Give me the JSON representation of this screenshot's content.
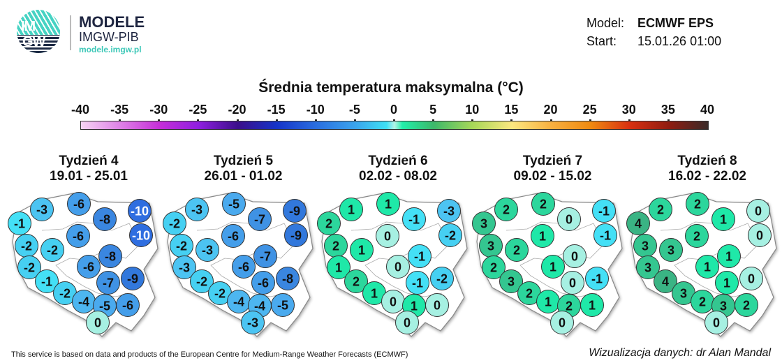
{
  "header": {
    "logo_text": "IMGW",
    "brand_title": "MODELE",
    "brand_subtitle": "IMGW-PIB",
    "brand_url": "modele.imgw.pl",
    "model_label": "Model:",
    "model_value": "ECMWF EPS",
    "start_label": "Start:",
    "start_value": "15.01.26 01:00"
  },
  "colorbar": {
    "title": "Średnia temperatura maksymalna (°C)",
    "ticks": [
      "-40",
      "-35",
      "-30",
      "-25",
      "-20",
      "-15",
      "-10",
      "-5",
      "0",
      "5",
      "10",
      "15",
      "20",
      "25",
      "30",
      "35",
      "40"
    ],
    "range": [
      -40,
      40
    ],
    "stops": [
      {
        "v": -40,
        "c": "#f6d4f4"
      },
      {
        "v": -30,
        "c": "#c62fd8"
      },
      {
        "v": -25,
        "c": "#8f1fe0"
      },
      {
        "v": -20,
        "c": "#3b0e8a"
      },
      {
        "v": -15,
        "c": "#1534c8"
      },
      {
        "v": -10,
        "c": "#2a6ee0"
      },
      {
        "v": -5,
        "c": "#3aa4ec"
      },
      {
        "v": -1,
        "c": "#3ee0f4"
      },
      {
        "v": 0,
        "c": "#b4f4e8"
      },
      {
        "v": 1,
        "c": "#22eeaa"
      },
      {
        "v": 5,
        "c": "#3cb86a"
      },
      {
        "v": 10,
        "c": "#a8d858"
      },
      {
        "v": 15,
        "c": "#fce880"
      },
      {
        "v": 20,
        "c": "#f8b040"
      },
      {
        "v": 25,
        "c": "#f08a10"
      },
      {
        "v": 30,
        "c": "#d83010"
      },
      {
        "v": 35,
        "c": "#901c10"
      },
      {
        "v": 40,
        "c": "#3a2a28"
      }
    ]
  },
  "weeks": [
    {
      "title": "Tydzień 4",
      "dates": "19.01 - 25.01",
      "values": [
        -3,
        -1,
        -6,
        -8,
        -10,
        -10,
        -6,
        -2,
        -2,
        -8,
        -6,
        -2,
        -9,
        -1,
        -7,
        -2,
        -4,
        -5,
        -6,
        0
      ]
    },
    {
      "title": "Tydzień 5",
      "dates": "26.01 - 01.02",
      "values": [
        -3,
        -2,
        -5,
        -7,
        -9,
        -9,
        -6,
        -2,
        -3,
        -7,
        -6,
        -3,
        -8,
        -2,
        -6,
        -2,
        -4,
        -4,
        -5,
        -3
      ]
    },
    {
      "title": "Tydzień 6",
      "dates": "02.02 - 08.02",
      "values": [
        1,
        2,
        1,
        -1,
        -3,
        -2,
        0,
        2,
        1,
        -1,
        0,
        1,
        -2,
        2,
        -1,
        1,
        0,
        1,
        0,
        0
      ]
    },
    {
      "title": "Tydzień 7",
      "dates": "09.02 - 15.02",
      "values": [
        2,
        3,
        2,
        0,
        -1,
        -1,
        1,
        3,
        2,
        0,
        1,
        2,
        -1,
        3,
        0,
        2,
        1,
        2,
        1,
        0
      ]
    },
    {
      "title": "Tydzień 8",
      "dates": "16.02 - 22.02",
      "values": [
        2,
        4,
        2,
        1,
        0,
        0,
        2,
        3,
        3,
        1,
        1,
        3,
        0,
        4,
        1,
        3,
        2,
        3,
        2,
        0
      ]
    }
  ],
  "footer": {
    "credit": "This service is based on data and products of the European Centre for Medium-Range Weather Forecasts (ECMWF)",
    "author": "Wizualizacja danych: dr Alan Mandal"
  }
}
